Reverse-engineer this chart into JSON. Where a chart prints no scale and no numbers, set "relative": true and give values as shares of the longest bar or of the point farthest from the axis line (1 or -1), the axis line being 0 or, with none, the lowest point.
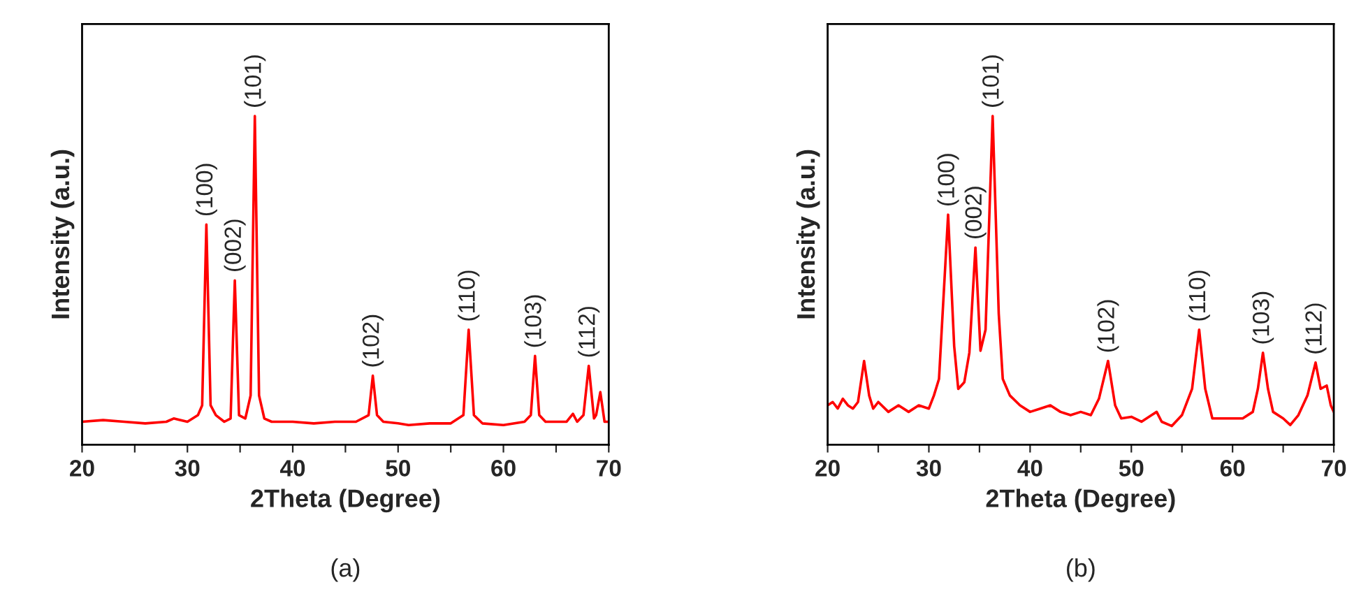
{
  "chart_data": [
    {
      "type": "line",
      "relative": true,
      "xlabel": "2Theta (Degree)",
      "ylabel": "Intensity (a.u.)",
      "xlim": [
        20,
        70
      ],
      "xticks": [
        20,
        {
          "value": 25,
          "label": null
        },
        30,
        {
          "value": 35,
          "label": null
        },
        40,
        {
          "value": 45,
          "label": null
        },
        50,
        {
          "value": 55,
          "label": null
        },
        60,
        {
          "value": 65,
          "label": null
        },
        70
      ],
      "tick_labels": "x",
      "grid": false,
      "legend": false,
      "series": [
        {
          "color": "#ff0000",
          "x": [
            20,
            22,
            24,
            26,
            28,
            28.7,
            30,
            31,
            31.4,
            31.8,
            32.2,
            32.7,
            33.5,
            34.1,
            34.5,
            34.9,
            35.5,
            36.0,
            36.4,
            36.8,
            37.3,
            38,
            40,
            42,
            44,
            46,
            47.2,
            47.6,
            48.0,
            48.6,
            50,
            51,
            53,
            55,
            56.2,
            56.7,
            57.2,
            58,
            60,
            62,
            62.6,
            63.0,
            63.4,
            64,
            66,
            66.6,
            67.0,
            67.6,
            68.1,
            68.6,
            68.8,
            69.2,
            69.6,
            70
          ],
          "values": [
            0.07,
            0.075,
            0.07,
            0.065,
            0.07,
            0.08,
            0.07,
            0.09,
            0.12,
            0.67,
            0.12,
            0.09,
            0.07,
            0.08,
            0.5,
            0.09,
            0.08,
            0.15,
            1.0,
            0.15,
            0.08,
            0.07,
            0.07,
            0.065,
            0.07,
            0.07,
            0.09,
            0.21,
            0.09,
            0.07,
            0.065,
            0.06,
            0.065,
            0.065,
            0.09,
            0.35,
            0.09,
            0.065,
            0.06,
            0.07,
            0.09,
            0.27,
            0.09,
            0.07,
            0.07,
            0.094,
            0.07,
            0.09,
            0.24,
            0.08,
            0.09,
            0.16,
            0.07,
            0.07
          ]
        }
      ],
      "annotations": [
        {
          "text": "(100)",
          "x": 31.8,
          "y": 0.67
        },
        {
          "text": "(002)",
          "x": 34.5,
          "y": 0.5
        },
        {
          "text": "(101)",
          "x": 36.4,
          "y": 1.0
        },
        {
          "text": "(102)",
          "x": 47.6,
          "y": 0.21
        },
        {
          "text": "(110)",
          "x": 56.7,
          "y": 0.35
        },
        {
          "text": "(103)",
          "x": 63.0,
          "y": 0.27
        },
        {
          "text": "(112)",
          "x": 68.1,
          "y": 0.24
        },
        "(a)"
      ]
    },
    {
      "type": "line",
      "relative": true,
      "xlabel": "2Theta (Degree)",
      "ylabel": "Intensity (a.u.)",
      "xlim": [
        20,
        70
      ],
      "xticks": [
        20,
        {
          "value": 25,
          "label": null
        },
        30,
        {
          "value": 35,
          "label": null
        },
        40,
        {
          "value": 45,
          "label": null
        },
        50,
        {
          "value": 55,
          "label": null
        },
        60,
        {
          "value": 65,
          "label": null
        },
        70
      ],
      "tick_labels": "x",
      "grid": false,
      "legend": false,
      "series": [
        {
          "color": "#ff0000",
          "x": [
            20,
            20.5,
            21,
            21.5,
            22,
            22.5,
            23,
            23.6,
            24.1,
            24.5,
            25,
            26,
            27,
            28,
            29,
            30,
            30.5,
            31,
            31.9,
            32.5,
            32.9,
            33.5,
            34.0,
            34.6,
            35.1,
            35.6,
            36.3,
            36.9,
            37.3,
            38,
            39,
            40,
            41,
            42,
            43,
            44,
            45,
            46,
            46.8,
            47.7,
            48.4,
            49,
            50,
            51,
            52,
            52.5,
            53,
            54,
            55,
            56,
            56.7,
            57.3,
            58,
            59,
            60,
            61,
            62,
            62.5,
            63.0,
            63.5,
            64,
            65,
            65.7,
            66.5,
            67.4,
            68.2,
            68.7,
            69.3,
            69.7,
            70
          ],
          "values": [
            0.12,
            0.13,
            0.11,
            0.14,
            0.12,
            0.11,
            0.13,
            0.255,
            0.15,
            0.11,
            0.13,
            0.1,
            0.12,
            0.1,
            0.12,
            0.11,
            0.15,
            0.2,
            0.7,
            0.3,
            0.17,
            0.19,
            0.28,
            0.6,
            0.286,
            0.35,
            1.0,
            0.4,
            0.2,
            0.15,
            0.12,
            0.1,
            0.11,
            0.12,
            0.1,
            0.09,
            0.1,
            0.09,
            0.14,
            0.255,
            0.12,
            0.08,
            0.085,
            0.07,
            0.09,
            0.1,
            0.07,
            0.057,
            0.09,
            0.17,
            0.35,
            0.17,
            0.08,
            0.08,
            0.08,
            0.08,
            0.1,
            0.17,
            0.28,
            0.17,
            0.1,
            0.08,
            0.06,
            0.09,
            0.15,
            0.25,
            0.17,
            0.18,
            0.12,
            0.1
          ]
        }
      ],
      "annotations": [
        {
          "text": "(100)",
          "x": 31.9,
          "y": 0.7
        },
        {
          "text": "(002)",
          "x": 34.6,
          "y": 0.6
        },
        {
          "text": "(101)",
          "x": 36.3,
          "y": 1.0
        },
        {
          "text": "(102)",
          "x": 47.7,
          "y": 0.255
        },
        {
          "text": "(110)",
          "x": 56.7,
          "y": 0.35
        },
        {
          "text": "(103)",
          "x": 63.0,
          "y": 0.28
        },
        {
          "text": "(112)",
          "x": 68.2,
          "y": 0.25
        },
        "(b)"
      ]
    }
  ]
}
